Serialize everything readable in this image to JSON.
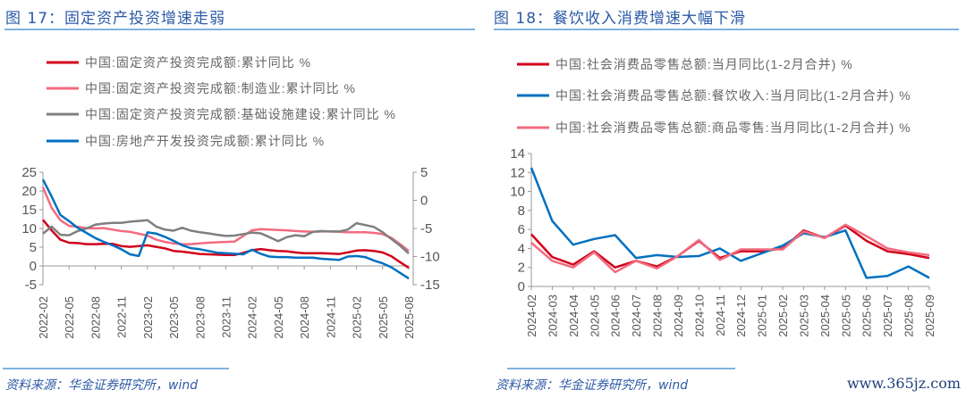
{
  "left": {
    "title": "图 17：固定资产投资增速走弱",
    "source": "资料来源：华金证券研究所，wind"
  },
  "right": {
    "title": "图 18：餐饮收入消费增速大幅下滑",
    "source": "资料来源：华金证券研究所，wind",
    "watermark": "www.365jz.com"
  },
  "chart_data": [
    {
      "type": "line",
      "title": "固定资产投资增速走弱",
      "x": [
        "2022-02",
        "2022-03",
        "2022-04",
        "2022-05",
        "2022-06",
        "2022-07",
        "2022-08",
        "2022-09",
        "2022-10",
        "2022-11",
        "2022-12",
        "2023-01",
        "2023-02",
        "2023-03",
        "2023-04",
        "2023-05",
        "2023-06",
        "2023-07",
        "2023-08",
        "2023-09",
        "2023-10",
        "2023-11",
        "2023-12",
        "2024-01",
        "2024-02",
        "2024-03",
        "2024-04",
        "2024-05",
        "2024-06",
        "2024-07",
        "2024-08",
        "2024-09",
        "2024-10",
        "2024-11",
        "2024-12",
        "2025-01",
        "2025-02",
        "2025-03",
        "2025-04",
        "2025-05",
        "2025-06",
        "2025-07",
        "2025-08"
      ],
      "tick_labels": [
        "2022-02",
        "2022-05",
        "2022-08",
        "2022-11",
        "2023-02",
        "2023-05",
        "2023-08",
        "2023-11",
        "2024-02",
        "2024-05",
        "2024-08",
        "2024-11",
        "2025-02",
        "2025-05",
        "2025-08"
      ],
      "ylim": [
        -5,
        25
      ],
      "yticks": [
        -5,
        0,
        5,
        10,
        15,
        20,
        25
      ],
      "y2lim": [
        -15,
        5
      ],
      "y2ticks": [
        -15,
        -10,
        -5,
        0,
        5
      ],
      "legend_position": "top",
      "series": [
        {
          "name": "中国:固定资产投资完成额:累计同比 %",
          "color": "#d0021b",
          "axis": "left",
          "values": [
            12.3,
            9.5,
            7.0,
            6.2,
            6.1,
            5.8,
            5.8,
            5.9,
            5.9,
            5.3,
            5.1,
            5.3,
            5.5,
            5.1,
            4.7,
            4.0,
            3.8,
            3.5,
            3.2,
            3.1,
            3.0,
            2.9,
            2.9,
            3.5,
            4.2,
            4.5,
            4.2,
            4.0,
            3.9,
            3.6,
            3.4,
            3.4,
            3.4,
            3.3,
            3.2,
            3.6,
            4.1,
            4.2,
            4.0,
            3.6,
            2.6,
            1.0,
            -0.5
          ]
        },
        {
          "name": "中国:固定资产投资完成额:制造业:累计同比 %",
          "color": "#f36b7f",
          "axis": "left",
          "values": [
            21.0,
            15.5,
            12.2,
            10.7,
            10.4,
            10.1,
            10.0,
            10.1,
            9.7,
            9.3,
            9.1,
            8.6,
            8.1,
            7.0,
            6.4,
            6.0,
            5.8,
            5.8,
            6.0,
            6.2,
            6.3,
            6.4,
            6.5,
            8.0,
            9.5,
            9.8,
            9.7,
            9.6,
            9.5,
            9.3,
            9.2,
            9.1,
            9.2,
            9.2,
            9.1,
            9.0,
            9.0,
            9.0,
            8.8,
            8.5,
            7.5,
            5.8,
            4.0
          ]
        },
        {
          "name": "中国:固定资产投资完成额:基础设施建设:累计同比 %",
          "color": "#7f7f7f",
          "axis": "left",
          "values": [
            8.6,
            10.5,
            8.3,
            8.2,
            9.3,
            10.0,
            11.0,
            11.3,
            11.5,
            11.5,
            11.8,
            12.0,
            12.2,
            10.5,
            9.7,
            9.4,
            10.2,
            9.4,
            9.0,
            8.7,
            8.3,
            8.0,
            8.1,
            8.5,
            8.9,
            8.7,
            7.7,
            6.6,
            7.7,
            8.2,
            7.9,
            9.1,
            9.3,
            9.2,
            9.2,
            9.7,
            11.4,
            10.9,
            10.4,
            9.0,
            7.2,
            5.4,
            3.3
          ]
        },
        {
          "name": "中国:房地产开发投资完成额:累计同比 %",
          "color": "#0070c0",
          "axis": "right",
          "values": [
            3.7,
            0.7,
            -2.6,
            -3.7,
            -4.9,
            -5.8,
            -6.7,
            -7.4,
            -8.0,
            -8.7,
            -9.6,
            -9.9,
            -5.7,
            -5.9,
            -6.5,
            -7.2,
            -8.0,
            -8.5,
            -8.7,
            -9.0,
            -9.3,
            -9.4,
            -9.5,
            -9.6,
            -8.8,
            -9.5,
            -10.0,
            -10.1,
            -10.1,
            -10.2,
            -10.2,
            -10.2,
            -10.4,
            -10.5,
            -10.6,
            -10.0,
            -9.9,
            -10.1,
            -10.7,
            -11.2,
            -11.9,
            -12.9,
            -13.9
          ]
        }
      ]
    },
    {
      "type": "line",
      "title": "餐饮收入消费增速大幅下滑",
      "x": [
        "2024-02",
        "2024-03",
        "2024-04",
        "2024-05",
        "2024-06",
        "2024-07",
        "2024-08",
        "2024-09",
        "2024-10",
        "2024-11",
        "2024-12",
        "2025-01",
        "2025-02",
        "2025-03",
        "2025-04",
        "2025-05",
        "2025-06",
        "2025-07",
        "2025-08",
        "2025-09"
      ],
      "ylim": [
        0,
        14
      ],
      "yticks": [
        0,
        2,
        4,
        6,
        8,
        10,
        12,
        14
      ],
      "legend_position": "top",
      "series": [
        {
          "name": "中国:社会消费品零售总额:当月同比(1-2月合并) %",
          "color": "#d0021b",
          "values": [
            5.5,
            3.1,
            2.3,
            3.7,
            2.0,
            2.7,
            2.1,
            3.2,
            4.8,
            3.0,
            3.7,
            3.7,
            4.0,
            5.9,
            5.1,
            6.4,
            4.8,
            3.7,
            3.4,
            3.0
          ]
        },
        {
          "name": "中国:社会消费品零售总额:餐饮收入:当月同比(1-2月合并) %",
          "color": "#0070c0",
          "values": [
            12.5,
            6.9,
            4.4,
            5.0,
            5.4,
            3.0,
            3.3,
            3.1,
            3.2,
            4.0,
            2.7,
            3.5,
            4.3,
            5.6,
            5.2,
            5.9,
            0.9,
            1.1,
            2.1,
            0.9
          ]
        },
        {
          "name": "中国:社会消费品零售总额:商品零售:当月同比(1-2月合并) %",
          "color": "#f36b7f",
          "values": [
            4.6,
            2.7,
            2.0,
            3.6,
            1.5,
            2.7,
            1.9,
            3.2,
            4.9,
            2.8,
            3.9,
            3.9,
            3.9,
            5.8,
            5.1,
            6.5,
            5.3,
            4.0,
            3.6,
            3.3
          ]
        }
      ]
    }
  ]
}
